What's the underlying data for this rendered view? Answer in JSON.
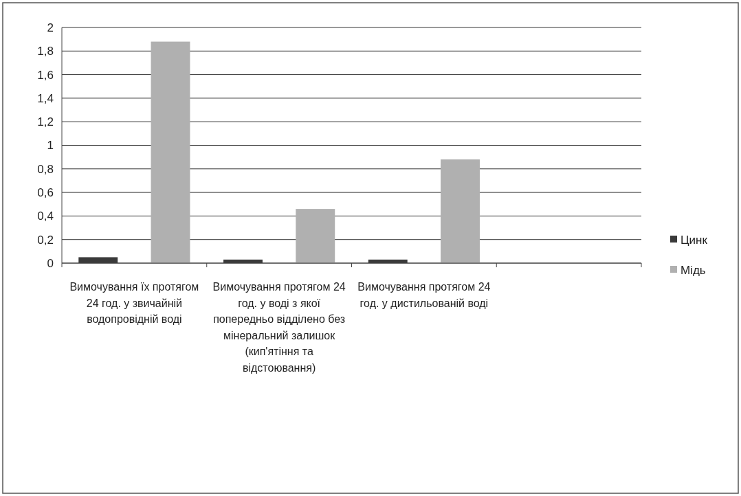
{
  "chart_data": {
    "type": "bar",
    "categories": [
      "Вимочування їх протягом 24 год. у звичайній водопровідній воді",
      "Вимочування протягом 24 год. у воді з якої попередньо відділено без мінеральний залишок (кип'ятіння та відстоювання)",
      "Вимочування протягом 24 год. у дистильованій воді",
      null
    ],
    "series": [
      {
        "name": "Цинк",
        "color": "#3a3a3a",
        "values": [
          0.05,
          0.03,
          0.03,
          null
        ]
      },
      {
        "name": "Мідь",
        "color": "#b0b0b0",
        "values": [
          1.88,
          0.46,
          0.88,
          null
        ]
      }
    ],
    "ylim": [
      0,
      2
    ],
    "yticks": [
      {
        "value": 0,
        "label": "0"
      },
      {
        "value": 0.2,
        "label": "0,2"
      },
      {
        "value": 0.4,
        "label": "0,4"
      },
      {
        "value": 0.6,
        "label": "0,6"
      },
      {
        "value": 0.8,
        "label": "0,8"
      },
      {
        "value": 1,
        "label": "1"
      },
      {
        "value": 1.2,
        "label": "1,2"
      },
      {
        "value": 1.4,
        "label": "1,4"
      },
      {
        "value": 1.6,
        "label": "1,6"
      },
      {
        "value": 1.8,
        "label": "1,8"
      },
      {
        "value": 2,
        "label": "2"
      }
    ],
    "grid": "y",
    "legend": "right"
  }
}
